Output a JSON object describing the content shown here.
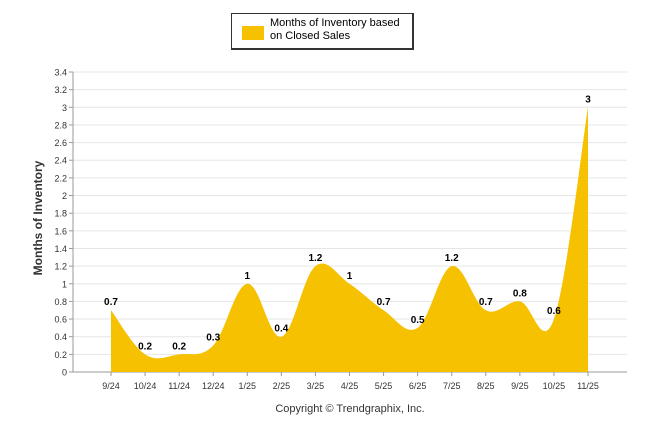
{
  "chart_data": {
    "type": "area",
    "title": "",
    "xlabel": "",
    "ylabel": "Months of Inventory",
    "ylim": [
      0,
      3.4
    ],
    "ytick_step": 0.2,
    "yticks": [
      "0",
      "0.2",
      "0.4",
      "0.6",
      "0.8",
      "1",
      "1.2",
      "1.4",
      "1.6",
      "1.8",
      "2",
      "2.2",
      "2.4",
      "2.6",
      "2.8",
      "3",
      "3.2",
      "3.4"
    ],
    "categories": [
      "9/24",
      "10/24",
      "11/24",
      "12/24",
      "1/25",
      "2/25",
      "3/25",
      "4/25",
      "5/25",
      "6/25",
      "7/25",
      "8/25",
      "9/25",
      "10/25",
      "11/25"
    ],
    "series": [
      {
        "name": "Months of Inventory based on Closed Sales",
        "values": [
          0.7,
          0.2,
          0.2,
          0.3,
          1,
          0.4,
          1.2,
          1,
          0.7,
          0.5,
          1.2,
          0.7,
          0.8,
          0.6,
          3
        ],
        "labels": [
          "0.7",
          "0.2",
          "0.2",
          "0.3",
          "1",
          "0.4",
          "1.2",
          "1",
          "0.7",
          "0.5",
          "1.2",
          "0.7",
          "0.8",
          "0.6",
          "3"
        ],
        "color": "#f5c100"
      }
    ],
    "legend": "top-center",
    "grid": true
  },
  "legend_label": "Months of Inventory based on Closed Sales",
  "footer": "Copyright © Trendgraphix, Inc.",
  "colors": {
    "area": "#f5c100",
    "grid": "#e6e6e6",
    "axis": "#333333"
  }
}
